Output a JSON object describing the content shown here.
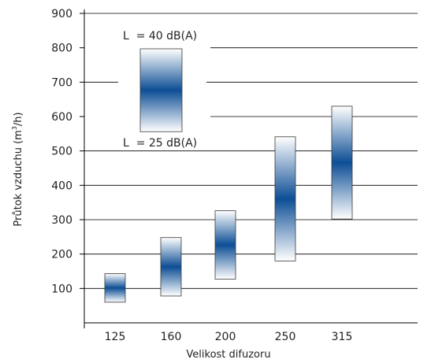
{
  "chart_data": {
    "type": "range-bar",
    "xlabel": "Velikost difuzoru",
    "ylabel_parts": {
      "main": "Průtok vzduchu (m",
      "sup": "3",
      "tail": "/h)"
    },
    "ylim": [
      0,
      900
    ],
    "yticks": [
      100,
      200,
      300,
      400,
      500,
      600,
      700,
      800,
      900
    ],
    "yticks_labels": [
      "100",
      "200",
      "300",
      "400",
      "500",
      "600",
      "700",
      "800",
      "900"
    ],
    "grid": true,
    "categories": [
      "125",
      "160",
      "200",
      "250",
      "315"
    ],
    "ranges": [
      {
        "category": "125",
        "low": 60,
        "high": 143
      },
      {
        "category": "160",
        "low": 78,
        "high": 248
      },
      {
        "category": "200",
        "low": 127,
        "high": 326
      },
      {
        "category": "250",
        "low": 180,
        "high": 541
      },
      {
        "category": "315",
        "low": 302,
        "high": 630
      }
    ],
    "legend": {
      "top_label": "L  = 40 dB(A)",
      "bottom_label": "L  = 25 dB(A)",
      "placement": "top-left",
      "low": 556,
      "high": 797
    },
    "colors": {
      "bar_center": "#0d4e95",
      "bar_edge": "#ffffff",
      "bar_stroke": "#3a3a3a",
      "axis": "#000000",
      "grid": "#000000"
    }
  }
}
